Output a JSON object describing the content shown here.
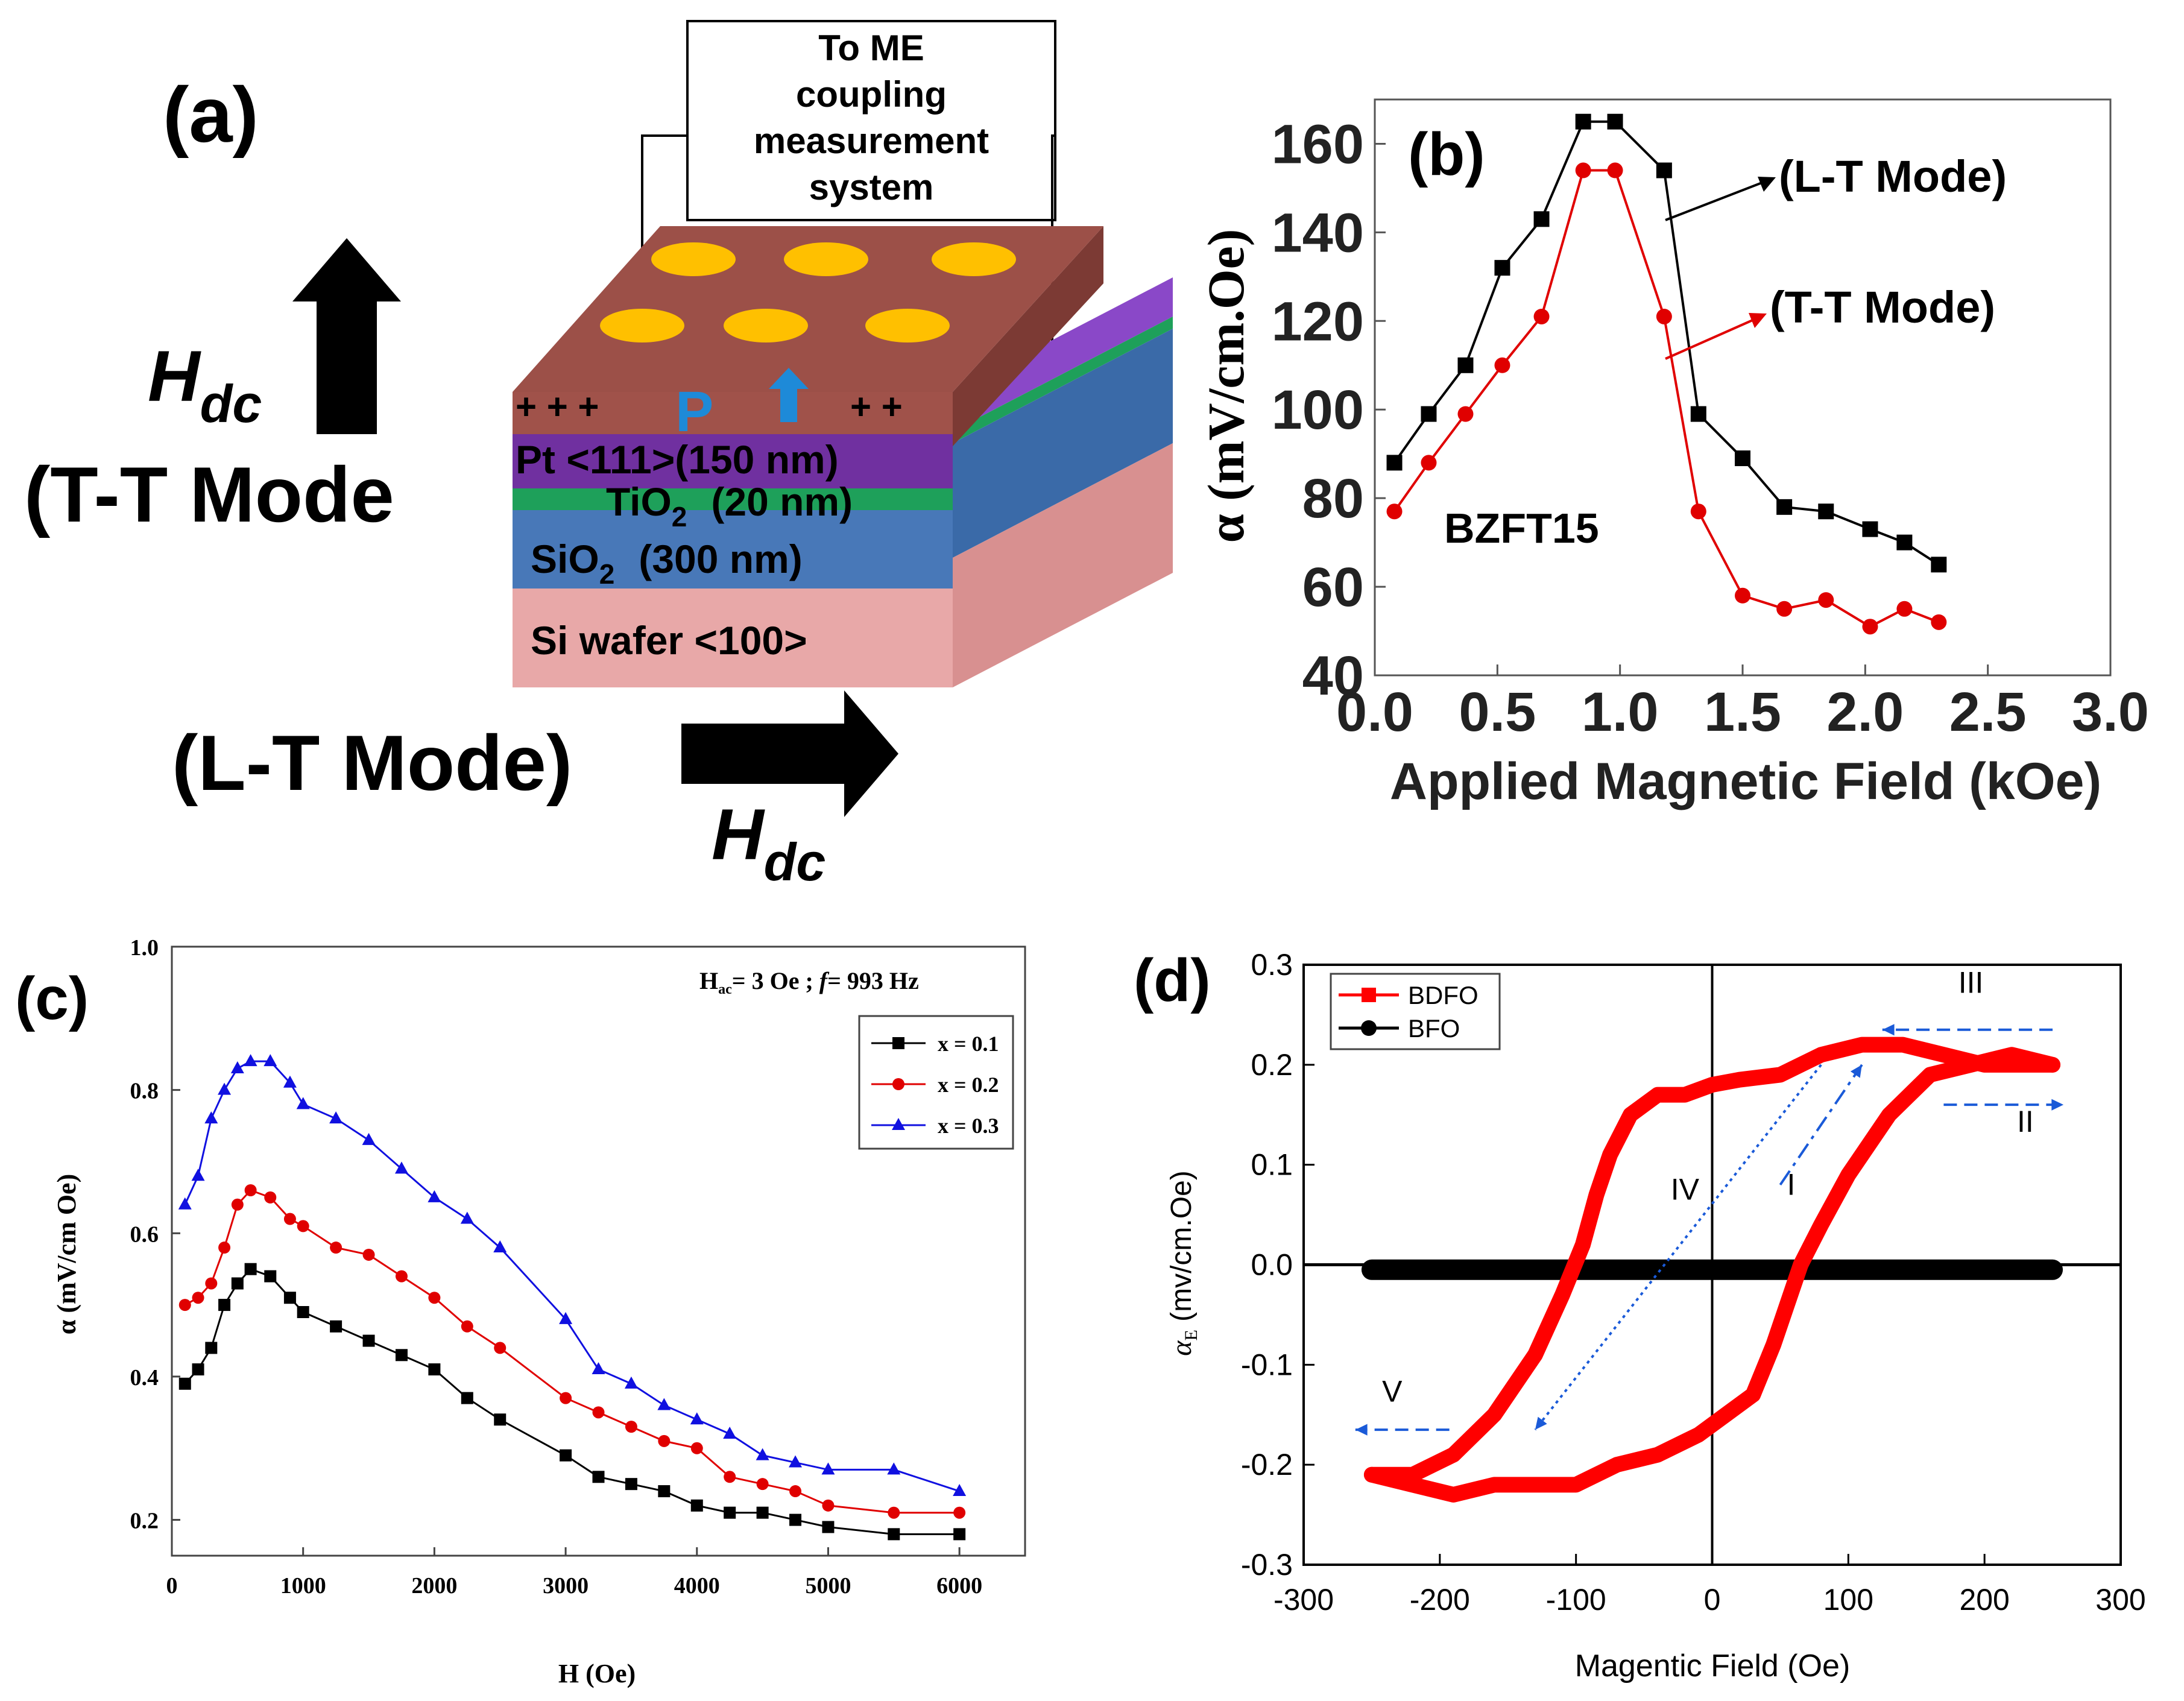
{
  "panel_a": {
    "label": "(a)",
    "box_lines": [
      "To ME",
      "coupling",
      "measurement",
      "system"
    ],
    "hdc": "H",
    "hdc_sub": "dc",
    "tt_mode": "(T-T Mode",
    "lt_mode": "(L-T Mode)",
    "pol_label": "P",
    "charges_left": "+ + +",
    "charges_right": "+ +",
    "layers": {
      "pt": "Pt <111>(150 nm)",
      "tio2_main": "TiO",
      "tio2_sub": "2",
      "tio2_rest": "(20 nm)",
      "sio2_main": "SiO",
      "sio2_sub": "2",
      "sio2_rest": "(300 nm)",
      "si": "Si wafer <100>"
    },
    "colors": {
      "top": "#9c5048",
      "front_top": "#a0524a",
      "side_top": "#7c3a34",
      "pt": "#7030a0",
      "pt_side": "#8a48c8",
      "tio2": "#1ea05a",
      "sio2": "#4878b8",
      "sio2_side": "#3a6aa8",
      "si": "#e8a8a8",
      "si_side": "#d89090",
      "electrode": "#ffc000",
      "arrow": "#1e8ad8"
    }
  },
  "chart_data": [
    {
      "panel": "(b)",
      "type": "line",
      "title": "",
      "annotation": "BZFT15",
      "xlabel": "Applied Magnetic Field (kOe)",
      "ylabel": "α (mV/cm.Oe)",
      "xlim": [
        0,
        3.0
      ],
      "ylim": [
        40,
        170
      ],
      "xticks": [
        "0.0",
        "0.5",
        "1.0",
        "1.5",
        "2.0",
        "2.5",
        "3.0"
      ],
      "yticks": [
        "40",
        "60",
        "80",
        "100",
        "120",
        "140",
        "160"
      ],
      "series": [
        {
          "name": "(L-T Mode)",
          "color": "#000000",
          "marker": "square",
          "x": [
            0.08,
            0.22,
            0.37,
            0.52,
            0.68,
            0.85,
            0.98,
            1.18,
            1.32,
            1.5,
            1.67,
            1.84,
            2.02,
            2.16,
            2.3
          ],
          "y": [
            88,
            99,
            110,
            132,
            143,
            165,
            165,
            154,
            99,
            89,
            78,
            77,
            73,
            70,
            65
          ]
        },
        {
          "name": "(T-T Mode)",
          "color": "#e00000",
          "marker": "circle",
          "x": [
            0.08,
            0.22,
            0.37,
            0.52,
            0.68,
            0.85,
            0.98,
            1.18,
            1.32,
            1.5,
            1.67,
            1.84,
            2.02,
            2.16,
            2.3
          ],
          "y": [
            77,
            88,
            99,
            110,
            121,
            154,
            154,
            121,
            77,
            58,
            55,
            57,
            51,
            55,
            52
          ]
        }
      ]
    },
    {
      "panel": "(c)",
      "type": "line",
      "title": "",
      "annotation": {
        "hac": "H",
        "hac_sub": "ac",
        "rest": "= 3 Oe ; ",
        "f": "f",
        "freq": "= 993 Hz"
      },
      "xlabel": "H (Oe)",
      "ylabel": "α (mV/cm Oe)",
      "xlim": [
        0,
        6500
      ],
      "ylim": [
        0.15,
        1.0
      ],
      "xticks": [
        "0",
        "1000",
        "2000",
        "3000",
        "4000",
        "5000",
        "6000"
      ],
      "yticks": [
        "0.2",
        "0.4",
        "0.6",
        "0.8",
        "1.0"
      ],
      "x": [
        100,
        200,
        300,
        400,
        500,
        600,
        750,
        900,
        1000,
        1250,
        1500,
        1750,
        2000,
        2250,
        2500,
        3000,
        3250,
        3500,
        3750,
        4000,
        4250,
        4500,
        4750,
        5000,
        5500,
        6000
      ],
      "series": [
        {
          "name": "x = 0.1",
          "color": "#000000",
          "marker": "square",
          "y": [
            0.39,
            0.41,
            0.44,
            0.5,
            0.53,
            0.55,
            0.54,
            0.51,
            0.49,
            0.47,
            0.45,
            0.43,
            0.41,
            0.37,
            0.34,
            0.29,
            0.26,
            0.25,
            0.24,
            0.22,
            0.21,
            0.21,
            0.2,
            0.19,
            0.18,
            0.18
          ]
        },
        {
          "name": "x = 0.2",
          "color": "#e00000",
          "marker": "circle",
          "y": [
            0.5,
            0.51,
            0.53,
            0.58,
            0.64,
            0.66,
            0.65,
            0.62,
            0.61,
            0.58,
            0.57,
            0.54,
            0.51,
            0.47,
            0.44,
            0.37,
            0.35,
            0.33,
            0.31,
            0.3,
            0.26,
            0.25,
            0.24,
            0.22,
            0.21,
            0.21
          ]
        },
        {
          "name": "x = 0.3",
          "color": "#1010e0",
          "marker": "triangle",
          "y": [
            0.64,
            0.68,
            0.76,
            0.8,
            0.83,
            0.84,
            0.84,
            0.81,
            0.78,
            0.76,
            0.73,
            0.69,
            0.65,
            0.62,
            0.58,
            0.48,
            0.41,
            0.39,
            0.36,
            0.34,
            0.32,
            0.29,
            0.28,
            0.27,
            0.27,
            0.24
          ]
        }
      ]
    },
    {
      "panel": "(d)",
      "type": "line",
      "title": "",
      "xlabel": "Magentic Field (Oe)",
      "ylabel_main": "α",
      "ylabel_sub": "E",
      "ylabel_rest": " (mv/cm.Oe)",
      "xlim": [
        -300,
        300
      ],
      "ylim": [
        -0.3,
        0.3
      ],
      "xticks": [
        "-300",
        "-200",
        "-100",
        "0",
        "100",
        "200",
        "300"
      ],
      "yticks": [
        "0.3",
        "0.2",
        "0.1",
        "0.0",
        "-0.1",
        "-0.2",
        "-0.3"
      ],
      "roman_labels": [
        "I",
        "II",
        "III",
        "IV",
        "V"
      ],
      "series": [
        {
          "name": "BDFO",
          "color": "#ff0000",
          "marker": "square",
          "loop_upper": {
            "x": [
              -250,
              -220,
              -190,
              -160,
              -130,
              -110,
              -95,
              -85,
              -75,
              -60,
              -40,
              -20,
              0,
              20,
              50,
              80,
              110,
              140,
              170,
              200,
              230,
              250
            ],
            "y": [
              -0.21,
              -0.21,
              -0.19,
              -0.15,
              -0.09,
              -0.03,
              0.02,
              0.07,
              0.11,
              0.15,
              0.17,
              0.17,
              0.18,
              0.185,
              0.19,
              0.21,
              0.22,
              0.22,
              0.21,
              0.2,
              0.2,
              0.2
            ]
          },
          "loop_lower": {
            "x": [
              250,
              220,
              190,
              160,
              130,
              100,
              80,
              65,
              55,
              45,
              30,
              10,
              -10,
              -40,
              -70,
              -100,
              -130,
              -160,
              -190,
              -220,
              -250
            ],
            "y": [
              0.2,
              0.21,
              0.2,
              0.19,
              0.15,
              0.09,
              0.04,
              0.0,
              -0.04,
              -0.08,
              -0.13,
              -0.15,
              -0.17,
              -0.19,
              -0.2,
              -0.22,
              -0.22,
              -0.22,
              -0.23,
              -0.22,
              -0.21
            ]
          }
        },
        {
          "name": "BFO",
          "color": "#000000",
          "marker": "circle",
          "x": [
            -250,
            250
          ],
          "y": [
            -0.005,
            -0.005
          ]
        }
      ]
    }
  ]
}
